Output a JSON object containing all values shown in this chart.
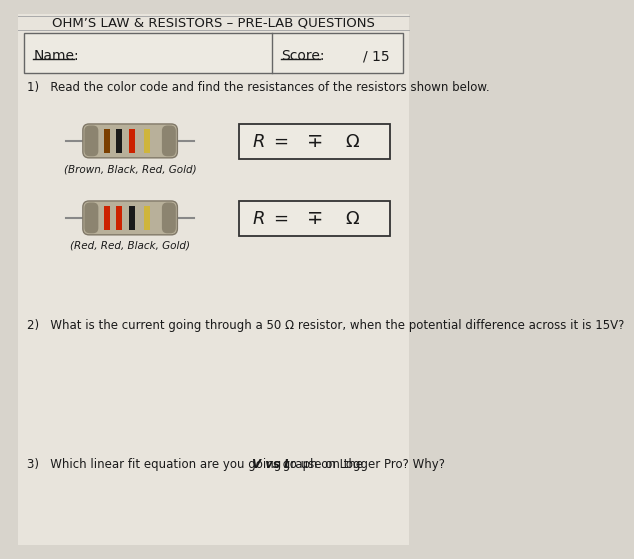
{
  "title": "OHM’S LAW & RESISTORS – PRE-LAB QUESTIONS",
  "bg_color": "#d8d4cc",
  "paper_color": "#e8e4dc",
  "name_label": "Name:",
  "score_label": "Score:",
  "score_value": "/ 15",
  "q1_text": "1)   Read the color code and find the resistances of the resistors shown below.",
  "resistor1_label": "(Brown, Black, Red, Gold)",
  "resistor2_label": "(Red, Red, Black, Gold)",
  "q2_text": "2)   What is the current going through a 50 Ω resistor, when the potential difference across it is 15V?",
  "q3_prefix": "3)   Which linear fit equation are you going to use on the ",
  "q3_bold": "V vs I",
  "q3_rest": " graph on Logger Pro? Why?",
  "text_color": "#1a1a1a",
  "box_color": "#333333",
  "line_color": "#555555"
}
